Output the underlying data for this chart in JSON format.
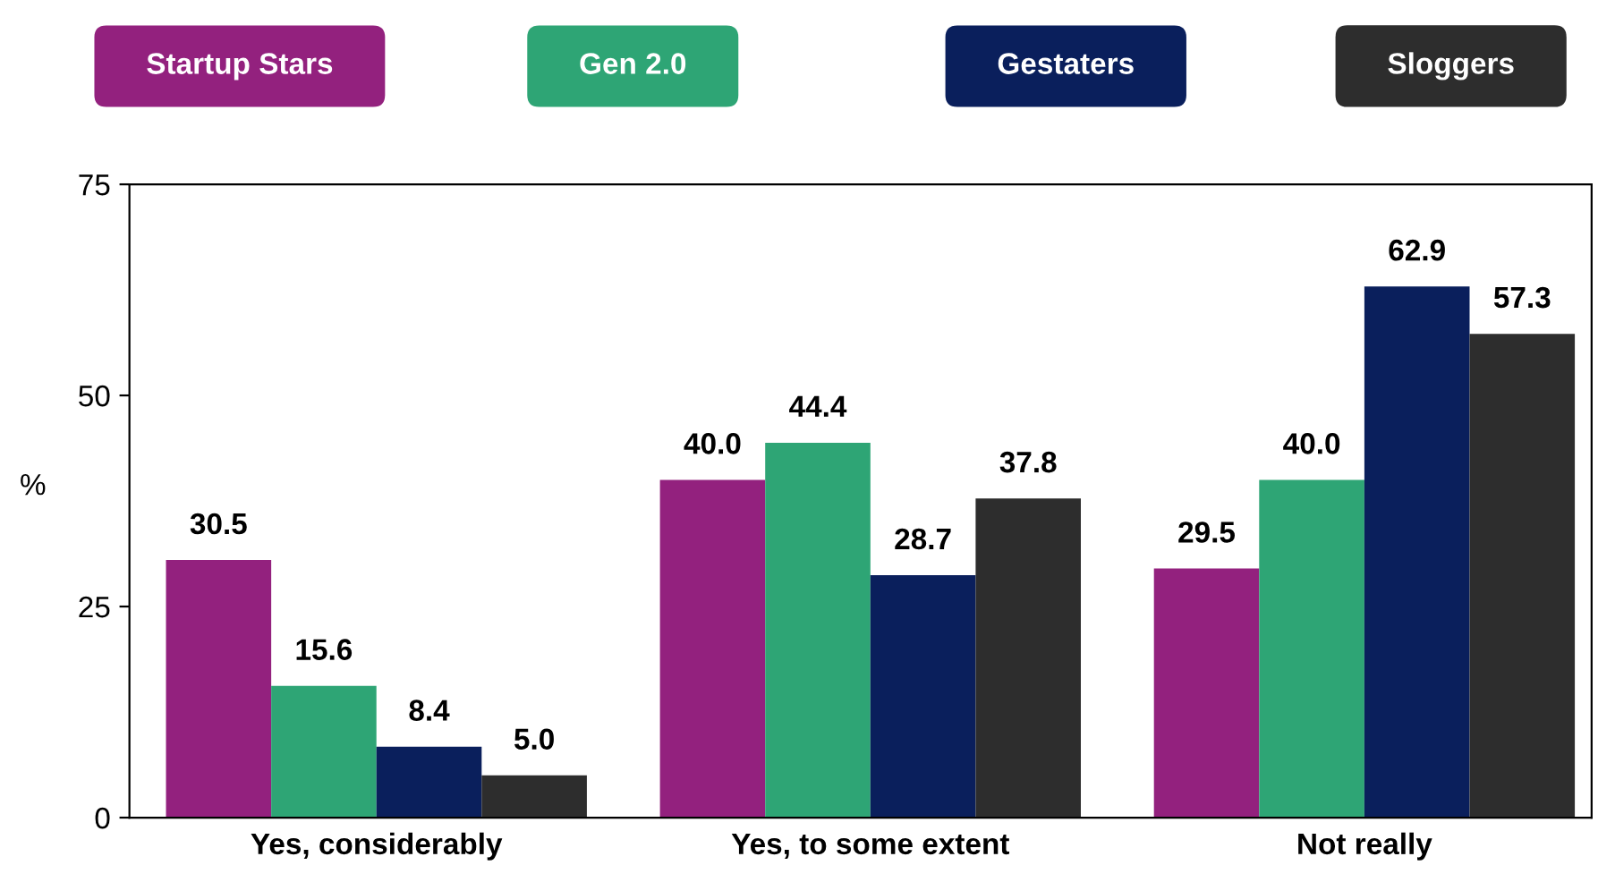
{
  "chart_data": {
    "type": "bar",
    "ylabel": "%",
    "categories": [
      "Yes, considerably",
      "Yes, to some extent",
      "Not really"
    ],
    "series": [
      {
        "name": "Startup Stars",
        "color": "#93217e",
        "values": [
          30.5,
          40.0,
          29.5
        ],
        "value_labels": [
          "30.5",
          "40.0",
          "29.5"
        ]
      },
      {
        "name": "Gen 2.0",
        "color": "#2ea575",
        "values": [
          15.6,
          44.4,
          40.0
        ],
        "value_labels": [
          "15.6",
          "44.4",
          "40.0"
        ]
      },
      {
        "name": "Gestaters",
        "color": "#0a1f5c",
        "values": [
          8.4,
          28.7,
          62.9
        ],
        "value_labels": [
          "8.4",
          "28.7",
          "62.9"
        ]
      },
      {
        "name": "Sloggers",
        "color": "#2d2d2d",
        "values": [
          5.0,
          37.8,
          57.3
        ],
        "value_labels": [
          "5.0",
          "37.8",
          "57.3"
        ]
      }
    ],
    "ylim": [
      0,
      75
    ],
    "yticks": [
      0,
      25,
      50,
      75
    ],
    "grid": false,
    "legend": "top"
  }
}
